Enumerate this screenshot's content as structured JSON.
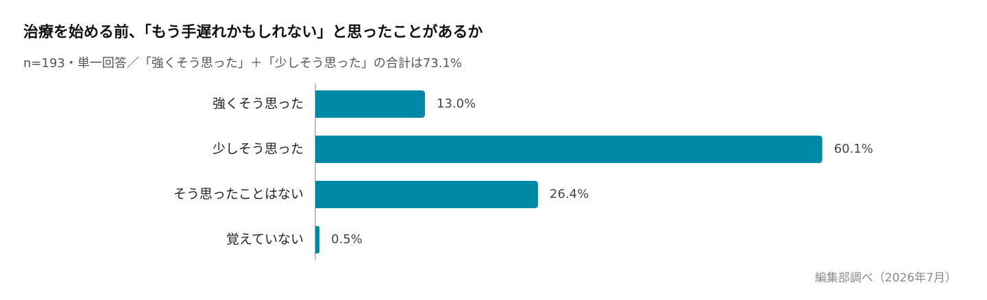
{
  "chart_data": {
    "type": "bar",
    "orientation": "horizontal",
    "title": "治療を始める前、「もう手遅れかもしれない」と思ったことがあるか",
    "subtitle": "n=193・単一回答／「強くそう思った」＋「少しそう思った」の合計は73.1%",
    "categories": [
      "強くそう思った",
      "少しそう思った",
      "そう思ったことはない",
      "覚えていない"
    ],
    "values": [
      13.0,
      60.1,
      26.4,
      0.5
    ],
    "value_labels": [
      "13.0%",
      "60.1%",
      "26.4%",
      "0.5%"
    ],
    "color": "#0089a7",
    "xlim": [
      0,
      65
    ],
    "source": "編集部調べ（2026年7月）"
  }
}
